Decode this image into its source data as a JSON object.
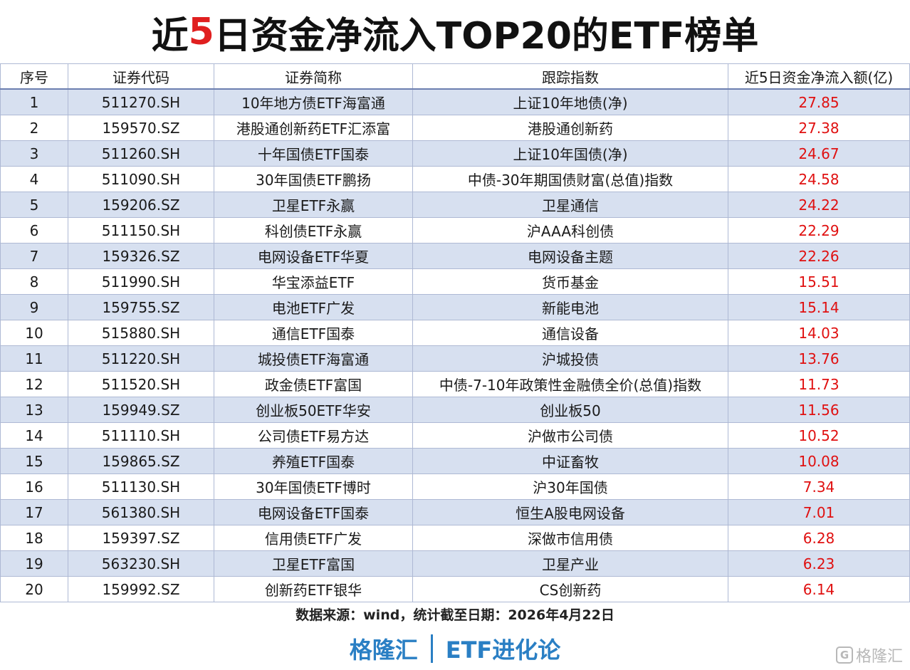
{
  "title": {
    "prefix": "近",
    "highlight": "5",
    "suffix": "日资金净流入TOP20的ETF榜单"
  },
  "table": {
    "headers": [
      "序号",
      "证券代码",
      "证券简称",
      "跟踪指数",
      "近5日资金净流入额(亿)"
    ],
    "rows": [
      [
        "1",
        "511270.SH",
        "10年地方债ETF海富通",
        "上证10年地债(净)",
        "27.85"
      ],
      [
        "2",
        "159570.SZ",
        "港股通创新药ETF汇添富",
        "港股通创新药",
        "27.38"
      ],
      [
        "3",
        "511260.SH",
        "十年国债ETF国泰",
        "上证10年国债(净)",
        "24.67"
      ],
      [
        "4",
        "511090.SH",
        "30年国债ETF鹏扬",
        "中债-30年期国债财富(总值)指数",
        "24.58"
      ],
      [
        "5",
        "159206.SZ",
        "卫星ETF永赢",
        "卫星通信",
        "24.22"
      ],
      [
        "6",
        "511150.SH",
        "科创债ETF永赢",
        "沪AAA科创债",
        "22.29"
      ],
      [
        "7",
        "159326.SZ",
        "电网设备ETF华夏",
        "电网设备主题",
        "22.26"
      ],
      [
        "8",
        "511990.SH",
        "华宝添益ETF",
        "货币基金",
        "15.51"
      ],
      [
        "9",
        "159755.SZ",
        "电池ETF广发",
        "新能电池",
        "15.14"
      ],
      [
        "10",
        "515880.SH",
        "通信ETF国泰",
        "通信设备",
        "14.03"
      ],
      [
        "11",
        "511220.SH",
        "城投债ETF海富通",
        "沪城投债",
        "13.76"
      ],
      [
        "12",
        "511520.SH",
        "政金债ETF富国",
        "中债-7-10年政策性金融债全价(总值)指数",
        "11.73"
      ],
      [
        "13",
        "159949.SZ",
        "创业板50ETF华安",
        "创业板50",
        "11.56"
      ],
      [
        "14",
        "511110.SH",
        "公司债ETF易方达",
        "沪做市公司债",
        "10.52"
      ],
      [
        "15",
        "159865.SZ",
        "养殖ETF国泰",
        "中证畜牧",
        "10.08"
      ],
      [
        "16",
        "511130.SH",
        "30年国债ETF博时",
        "沪30年国债",
        "7.34"
      ],
      [
        "17",
        "561380.SH",
        "电网设备ETF国泰",
        "恒生A股电网设备",
        "7.01"
      ],
      [
        "18",
        "159397.SZ",
        "信用债ETF广发",
        "深做市信用债",
        "6.28"
      ],
      [
        "19",
        "563230.SH",
        "卫星ETF富国",
        "卫星产业",
        "6.23"
      ],
      [
        "20",
        "159992.SZ",
        "创新药ETF银华",
        "CS创新药",
        "6.14"
      ]
    ]
  },
  "footer": {
    "source": "数据来源：wind，统计截至日期：2026年4月22日",
    "brand_left": "格隆汇",
    "brand_right": "ETF进化论",
    "watermark_icon": "G",
    "watermark_text": "格隆汇"
  },
  "colors": {
    "title_highlight": "#e01f1f",
    "amount": "#e01010",
    "row_band": "#d7e0f0",
    "brand": "#2a7fc4"
  }
}
